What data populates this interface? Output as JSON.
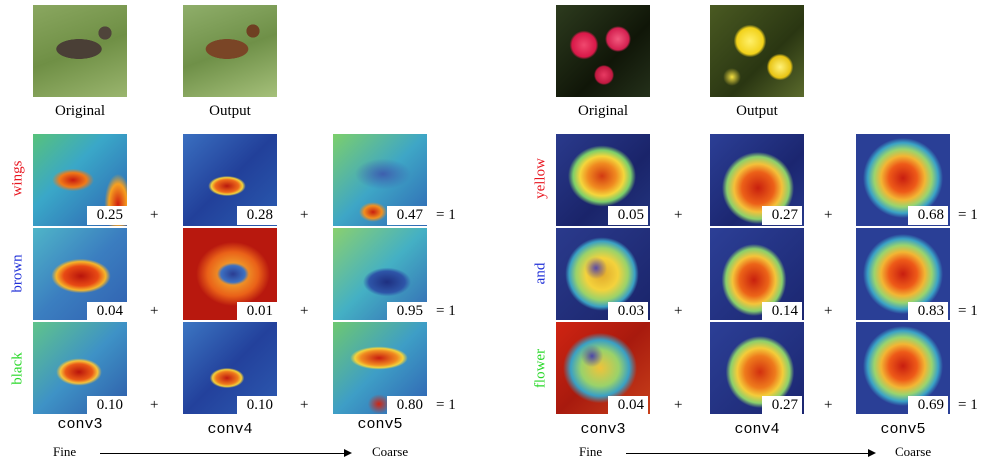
{
  "left": {
    "original_caption": "Original",
    "output_caption": "Output",
    "rows": [
      {
        "word": "wings",
        "color": "#e8141e",
        "weights": [
          "0.25",
          "0.28",
          "0.47"
        ]
      },
      {
        "word": "brown",
        "color": "#2030d8",
        "weights": [
          "0.04",
          "0.01",
          "0.95"
        ]
      },
      {
        "word": "black",
        "color": "#28d828",
        "weights": [
          "0.10",
          "0.10",
          "0.80"
        ]
      }
    ],
    "layers": [
      "conv3",
      "conv4",
      "conv5"
    ],
    "scale": {
      "start": "Fine",
      "end": "Coarse"
    }
  },
  "right": {
    "original_caption": "Original",
    "output_caption": "Output",
    "rows": [
      {
        "word": "yellow",
        "color": "#e8141e",
        "weights": [
          "0.05",
          "0.27",
          "0.68"
        ]
      },
      {
        "word": "and",
        "color": "#2030d8",
        "weights": [
          "0.03",
          "0.14",
          "0.83"
        ]
      },
      {
        "word": "flower",
        "color": "#28d828",
        "weights": [
          "0.04",
          "0.27",
          "0.69"
        ]
      }
    ],
    "layers": [
      "conv3",
      "conv4",
      "conv5"
    ],
    "scale": {
      "start": "Fine",
      "end": "Coarse"
    }
  },
  "symbols": {
    "plus": "+",
    "equals": "= 1"
  }
}
